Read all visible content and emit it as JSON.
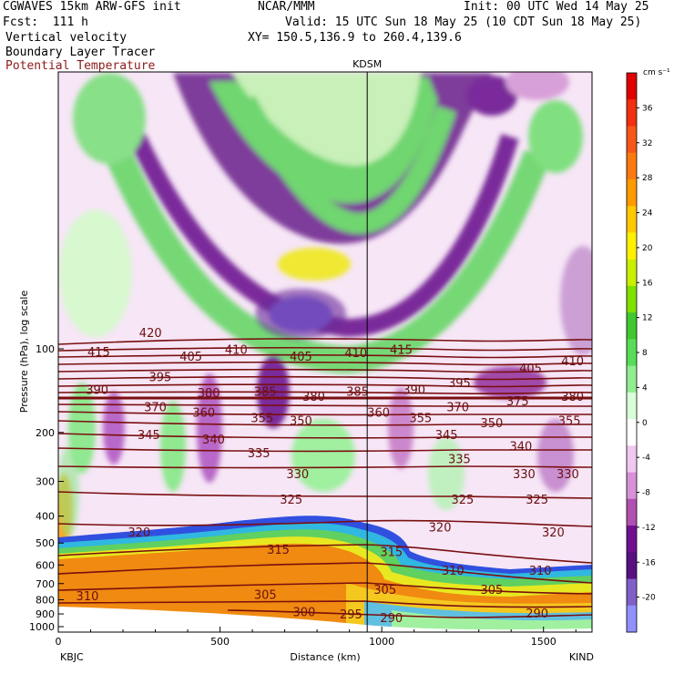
{
  "header": {
    "model": "CGWAVES 15km ARW-GFS init",
    "center": "NCAR/MMM",
    "init": "Init: 00 UTC Wed 14 May 25",
    "fcst": "Fcst:  111 h",
    "valid": "Valid: 15 UTC Sun 18 May 25 (10 CDT Sun 18 May 25)",
    "field1": "Vertical velocity",
    "field2": "Boundary Layer Tracer",
    "field3": "Potential Temperature",
    "xy": "XY= 150.5,136.9 to 260.4,139.6",
    "field3_color": "#8b1a1a"
  },
  "chart_data": {
    "type": "heatmap",
    "title": "",
    "xlabel": "Distance (km)",
    "ylabel": "Pressure (hPa), log scale",
    "xlim": [
      0,
      1650
    ],
    "ylim": [
      1050,
      10
    ],
    "yscale": "log",
    "x_ticks": [
      0,
      500,
      1000,
      1500
    ],
    "x_tick_labels": [
      "0",
      "500",
      "1000",
      "1500"
    ],
    "y_ticks": [
      100,
      200,
      300,
      400,
      500,
      600,
      700,
      800,
      900,
      1000
    ],
    "y_tick_labels": [
      "100",
      "200",
      "300",
      "400",
      "500",
      "600",
      "700",
      "800",
      "900",
      "1000"
    ],
    "left_station": "KBJC",
    "right_station": "KIND",
    "marker_station": "KDSM",
    "marker_x": 955,
    "colorbar": {
      "unit": "cm s⁻¹",
      "labels": [
        "36",
        "32",
        "28",
        "24",
        "20",
        "16",
        "12",
        "8",
        "4",
        "0",
        "-4",
        "-8",
        "-12",
        "-16",
        "-20"
      ],
      "values": [
        36,
        32,
        28,
        24,
        20,
        16,
        12,
        8,
        4,
        0,
        -4,
        -8,
        -12,
        -16,
        -20
      ],
      "colors": [
        "#e00000",
        "#f03010",
        "#f85518",
        "#fb7a10",
        "#ff9a00",
        "#ffc800",
        "#fff000",
        "#c8f000",
        "#80e000",
        "#40c830",
        "#58dd58",
        "#90ee90",
        "#d8ffd8",
        "#ffffff",
        "#f0c8f0",
        "#d890d8",
        "#b050b0",
        "#701090",
        "#5a1080",
        "#8060c8",
        "#9090ff"
      ]
    },
    "theta_labels": [
      {
        "v": "420",
        "x": 285,
        "p": 88
      },
      {
        "v": "415",
        "x": 125,
        "p": 103
      },
      {
        "v": "405",
        "x": 410,
        "p": 107
      },
      {
        "v": "410",
        "x": 550,
        "p": 101
      },
      {
        "v": "405",
        "x": 750,
        "p": 107
      },
      {
        "v": "410",
        "x": 920,
        "p": 104
      },
      {
        "v": "415",
        "x": 1060,
        "p": 101
      },
      {
        "v": "405",
        "x": 1460,
        "p": 118
      },
      {
        "v": "410",
        "x": 1590,
        "p": 111
      },
      {
        "v": "395",
        "x": 315,
        "p": 127
      },
      {
        "v": "390",
        "x": 120,
        "p": 141
      },
      {
        "v": "380",
        "x": 465,
        "p": 145
      },
      {
        "v": "385",
        "x": 640,
        "p": 143
      },
      {
        "v": "380",
        "x": 790,
        "p": 149
      },
      {
        "v": "385",
        "x": 925,
        "p": 143
      },
      {
        "v": "390",
        "x": 1100,
        "p": 141
      },
      {
        "v": "395",
        "x": 1240,
        "p": 133
      },
      {
        "v": "375",
        "x": 1420,
        "p": 155
      },
      {
        "v": "380",
        "x": 1590,
        "p": 149
      },
      {
        "v": "370",
        "x": 300,
        "p": 163
      },
      {
        "v": "360",
        "x": 450,
        "p": 170
      },
      {
        "v": "355",
        "x": 630,
        "p": 178
      },
      {
        "v": "350",
        "x": 750,
        "p": 182
      },
      {
        "v": "360",
        "x": 990,
        "p": 170
      },
      {
        "v": "355",
        "x": 1120,
        "p": 178
      },
      {
        "v": "370",
        "x": 1235,
        "p": 163
      },
      {
        "v": "350",
        "x": 1340,
        "p": 186
      },
      {
        "v": "355",
        "x": 1580,
        "p": 182
      },
      {
        "v": "345",
        "x": 280,
        "p": 205
      },
      {
        "v": "340",
        "x": 480,
        "p": 213
      },
      {
        "v": "345",
        "x": 1200,
        "p": 205
      },
      {
        "v": "340",
        "x": 1430,
        "p": 225
      },
      {
        "v": "335",
        "x": 620,
        "p": 238
      },
      {
        "v": "335",
        "x": 1240,
        "p": 250
      },
      {
        "v": "330",
        "x": 740,
        "p": 283
      },
      {
        "v": "330",
        "x": 1440,
        "p": 283
      },
      {
        "v": "330",
        "x": 1575,
        "p": 283
      },
      {
        "v": "325",
        "x": 720,
        "p": 350
      },
      {
        "v": "325",
        "x": 1250,
        "p": 350
      },
      {
        "v": "325",
        "x": 1480,
        "p": 350
      },
      {
        "v": "320",
        "x": 250,
        "p": 460
      },
      {
        "v": "320",
        "x": 1180,
        "p": 440
      },
      {
        "v": "320",
        "x": 1530,
        "p": 460
      },
      {
        "v": "315",
        "x": 680,
        "p": 530
      },
      {
        "v": "315",
        "x": 1030,
        "p": 540
      },
      {
        "v": "310",
        "x": 1220,
        "p": 630
      },
      {
        "v": "310",
        "x": 1490,
        "p": 630
      },
      {
        "v": "310",
        "x": 90,
        "p": 780
      },
      {
        "v": "305",
        "x": 640,
        "p": 770
      },
      {
        "v": "305",
        "x": 1010,
        "p": 740
      },
      {
        "v": "305",
        "x": 1340,
        "p": 740
      },
      {
        "v": "300",
        "x": 760,
        "p": 890
      },
      {
        "v": "295",
        "x": 905,
        "p": 905
      },
      {
        "v": "290",
        "x": 1030,
        "p": 935
      },
      {
        "v": "290",
        "x": 1480,
        "p": 900
      }
    ]
  }
}
